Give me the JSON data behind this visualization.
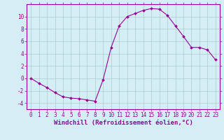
{
  "x": [
    0,
    1,
    2,
    3,
    4,
    5,
    6,
    7,
    8,
    9,
    10,
    11,
    12,
    13,
    14,
    15,
    16,
    17,
    18,
    19,
    20,
    21,
    22,
    23
  ],
  "y": [
    0.0,
    -0.8,
    -1.5,
    -2.3,
    -3.0,
    -3.2,
    -3.3,
    -3.5,
    -3.7,
    -0.2,
    5.0,
    8.5,
    10.0,
    10.5,
    11.0,
    11.3,
    11.2,
    10.2,
    8.5,
    6.8,
    5.0,
    5.0,
    4.6,
    3.0
  ],
  "line_color": "#990099",
  "marker": "D",
  "marker_size": 2,
  "bg_color": "#d5eef5",
  "grid_color": "#aacccc",
  "xlabel": "Windchill (Refroidissement éolien,°C)",
  "xlabel_color": "#990099",
  "ylim": [
    -5,
    12
  ],
  "xlim": [
    -0.5,
    23.5
  ],
  "yticks": [
    -4,
    -2,
    0,
    2,
    4,
    6,
    8,
    10
  ],
  "xticks": [
    0,
    1,
    2,
    3,
    4,
    5,
    6,
    7,
    8,
    9,
    10,
    11,
    12,
    13,
    14,
    15,
    16,
    17,
    18,
    19,
    20,
    21,
    22,
    23
  ],
  "tick_color": "#990099",
  "spine_color": "#990099",
  "tick_fontsize": 5.5,
  "xlabel_fontsize": 6.5
}
